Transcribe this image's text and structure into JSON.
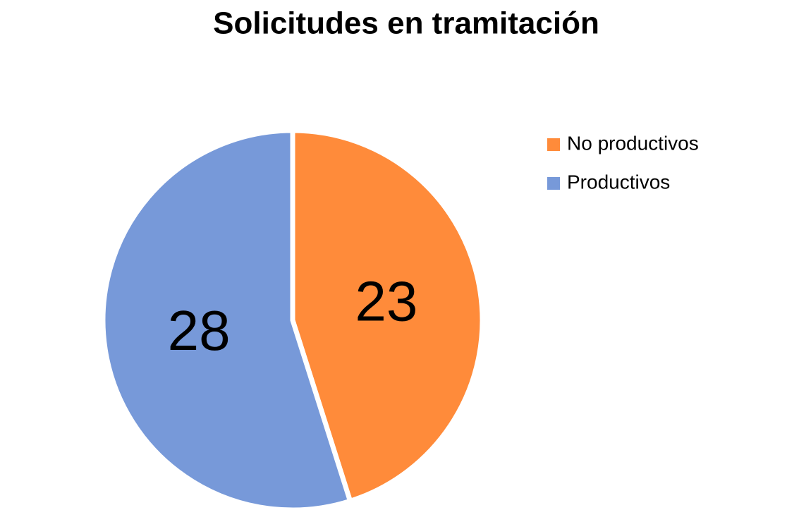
{
  "chart_data": {
    "type": "pie",
    "title": "Solicitudes en tramitación",
    "categories": [
      "No productivos",
      "Productivos"
    ],
    "values": [
      23,
      28
    ],
    "colors": [
      "#ff8b3a",
      "#7799d9"
    ],
    "legend": "right"
  }
}
